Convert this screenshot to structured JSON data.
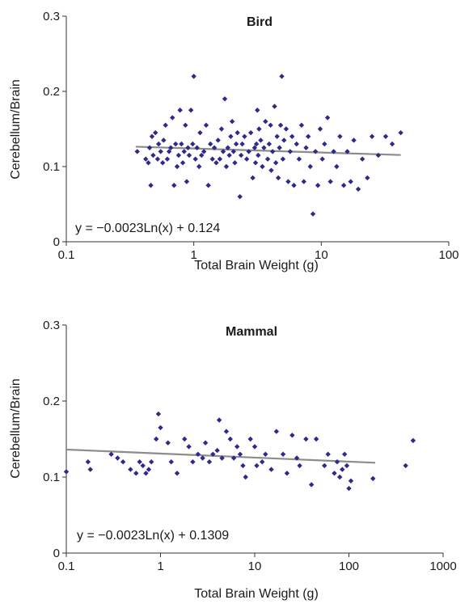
{
  "colors": {
    "points": "#2e2a8c",
    "trendline": "#8c8c8c",
    "axis": "#333333"
  },
  "chart_data": [
    {
      "type": "scatter",
      "title": "Bird",
      "xlabel": "Total Brain Weight (g)",
      "ylabel": "Cerebellum/Brain",
      "xscale": "log",
      "xlim": [
        0.1,
        100
      ],
      "ylim": [
        0,
        0.3
      ],
      "xticks": [
        "0.1",
        "1",
        "10",
        "100"
      ],
      "xtick_values": [
        0.1,
        1,
        10,
        100
      ],
      "yticks": [
        "0",
        "0.1",
        "0.2",
        "0.3"
      ],
      "ytick_values": [
        0,
        0.1,
        0.2,
        0.3
      ],
      "grid": false,
      "equation": "y = −0.0023Ln(x) + 0.124",
      "trendline": {
        "slope": -0.0023,
        "intercept": 0.124,
        "x_range": [
          0.35,
          42
        ]
      },
      "points": [
        [
          0.36,
          0.12
        ],
        [
          0.42,
          0.11
        ],
        [
          0.44,
          0.105
        ],
        [
          0.45,
          0.125
        ],
        [
          0.46,
          0.075
        ],
        [
          0.47,
          0.14
        ],
        [
          0.48,
          0.115
        ],
        [
          0.5,
          0.145
        ],
        [
          0.52,
          0.11
        ],
        [
          0.53,
          0.13
        ],
        [
          0.55,
          0.12
        ],
        [
          0.57,
          0.105
        ],
        [
          0.58,
          0.135
        ],
        [
          0.6,
          0.155
        ],
        [
          0.62,
          0.11
        ],
        [
          0.64,
          0.12
        ],
        [
          0.66,
          0.125
        ],
        [
          0.68,
          0.165
        ],
        [
          0.7,
          0.075
        ],
        [
          0.72,
          0.13
        ],
        [
          0.74,
          0.1
        ],
        [
          0.76,
          0.115
        ],
        [
          0.78,
          0.175
        ],
        [
          0.8,
          0.13
        ],
        [
          0.82,
          0.105
        ],
        [
          0.84,
          0.12
        ],
        [
          0.86,
          0.155
        ],
        [
          0.88,
          0.08
        ],
        [
          0.9,
          0.125
        ],
        [
          0.92,
          0.115
        ],
        [
          0.95,
          0.175
        ],
        [
          0.98,
          0.13
        ],
        [
          1.0,
          0.22
        ],
        [
          1.03,
          0.11
        ],
        [
          1.06,
          0.125
        ],
        [
          1.1,
          0.1
        ],
        [
          1.12,
          0.145
        ],
        [
          1.15,
          0.115
        ],
        [
          1.2,
          0.12
        ],
        [
          1.25,
          0.155
        ],
        [
          1.3,
          0.075
        ],
        [
          1.35,
          0.13
        ],
        [
          1.4,
          0.11
        ],
        [
          1.45,
          0.125
        ],
        [
          1.5,
          0.105
        ],
        [
          1.55,
          0.135
        ],
        [
          1.6,
          0.11
        ],
        [
          1.65,
          0.15
        ],
        [
          1.7,
          0.12
        ],
        [
          1.75,
          0.19
        ],
        [
          1.8,
          0.1
        ],
        [
          1.85,
          0.125
        ],
        [
          1.9,
          0.115
        ],
        [
          1.95,
          0.14
        ],
        [
          2.0,
          0.16
        ],
        [
          2.05,
          0.12
        ],
        [
          2.1,
          0.105
        ],
        [
          2.15,
          0.13
        ],
        [
          2.2,
          0.145
        ],
        [
          2.3,
          0.06
        ],
        [
          2.35,
          0.115
        ],
        [
          2.4,
          0.13
        ],
        [
          2.5,
          0.14
        ],
        [
          2.6,
          0.11
        ],
        [
          2.7,
          0.12
        ],
        [
          2.8,
          0.145
        ],
        [
          2.9,
          0.085
        ],
        [
          3.0,
          0.125
        ],
        [
          3.05,
          0.105
        ],
        [
          3.1,
          0.13
        ],
        [
          3.15,
          0.175
        ],
        [
          3.2,
          0.115
        ],
        [
          3.25,
          0.15
        ],
        [
          3.35,
          0.135
        ],
        [
          3.45,
          0.1
        ],
        [
          3.55,
          0.125
        ],
        [
          3.65,
          0.16
        ],
        [
          3.8,
          0.11
        ],
        [
          3.9,
          0.13
        ],
        [
          4.0,
          0.155
        ],
        [
          4.05,
          0.095
        ],
        [
          4.15,
          0.12
        ],
        [
          4.3,
          0.18
        ],
        [
          4.4,
          0.105
        ],
        [
          4.5,
          0.14
        ],
        [
          4.6,
          0.085
        ],
        [
          4.7,
          0.125
        ],
        [
          4.8,
          0.155
        ],
        [
          4.9,
          0.22
        ],
        [
          5.0,
          0.11
        ],
        [
          5.1,
          0.135
        ],
        [
          5.3,
          0.15
        ],
        [
          5.5,
          0.08
        ],
        [
          5.7,
          0.12
        ],
        [
          5.9,
          0.14
        ],
        [
          6.1,
          0.075
        ],
        [
          6.4,
          0.13
        ],
        [
          6.7,
          0.11
        ],
        [
          7.0,
          0.155
        ],
        [
          7.3,
          0.08
        ],
        [
          7.6,
          0.125
        ],
        [
          7.9,
          0.14
        ],
        [
          8.2,
          0.1
        ],
        [
          8.6,
          0.037
        ],
        [
          9.0,
          0.12
        ],
        [
          9.4,
          0.075
        ],
        [
          9.8,
          0.15
        ],
        [
          10.2,
          0.11
        ],
        [
          10.6,
          0.13
        ],
        [
          11.2,
          0.165
        ],
        [
          11.8,
          0.08
        ],
        [
          12.5,
          0.12
        ],
        [
          13.2,
          0.1
        ],
        [
          14.0,
          0.14
        ],
        [
          15.0,
          0.075
        ],
        [
          16.0,
          0.12
        ],
        [
          17.0,
          0.08
        ],
        [
          18.0,
          0.135
        ],
        [
          19.5,
          0.07
        ],
        [
          21.0,
          0.11
        ],
        [
          23.0,
          0.085
        ],
        [
          25.0,
          0.14
        ],
        [
          28.0,
          0.115
        ],
        [
          32.0,
          0.14
        ],
        [
          36.0,
          0.13
        ],
        [
          42.0,
          0.145
        ]
      ]
    },
    {
      "type": "scatter",
      "title": "Mammal",
      "xlabel": "Total Brain Weight (g)",
      "ylabel": "Cerebellum/Brain",
      "xscale": "log",
      "xlim": [
        0.1,
        1000
      ],
      "ylim": [
        0,
        0.3
      ],
      "xticks": [
        "0.1",
        "1",
        "10",
        "100",
        "1000"
      ],
      "xtick_values": [
        0.1,
        1,
        10,
        100,
        1000
      ],
      "yticks": [
        "0",
        "0.1",
        "0.2",
        "0.3"
      ],
      "ytick_values": [
        0,
        0.1,
        0.2,
        0.3
      ],
      "grid": false,
      "equation": "y = −0.0023Ln(x) + 0.1309",
      "trendline": {
        "slope": -0.0023,
        "intercept": 0.1309,
        "x_range": [
          0.1,
          190
        ]
      },
      "points": [
        [
          0.1,
          0.107
        ],
        [
          0.17,
          0.12
        ],
        [
          0.18,
          0.11
        ],
        [
          0.3,
          0.13
        ],
        [
          0.35,
          0.125
        ],
        [
          0.4,
          0.12
        ],
        [
          0.48,
          0.11
        ],
        [
          0.55,
          0.105
        ],
        [
          0.6,
          0.12
        ],
        [
          0.65,
          0.115
        ],
        [
          0.7,
          0.105
        ],
        [
          0.75,
          0.11
        ],
        [
          0.8,
          0.12
        ],
        [
          0.9,
          0.15
        ],
        [
          0.95,
          0.183
        ],
        [
          1.0,
          0.165
        ],
        [
          1.2,
          0.145
        ],
        [
          1.3,
          0.12
        ],
        [
          1.5,
          0.105
        ],
        [
          1.8,
          0.15
        ],
        [
          2.0,
          0.14
        ],
        [
          2.2,
          0.12
        ],
        [
          2.5,
          0.13
        ],
        [
          2.8,
          0.125
        ],
        [
          3.0,
          0.145
        ],
        [
          3.3,
          0.12
        ],
        [
          3.6,
          0.13
        ],
        [
          4.0,
          0.135
        ],
        [
          4.2,
          0.175
        ],
        [
          4.5,
          0.125
        ],
        [
          5.0,
          0.16
        ],
        [
          5.5,
          0.15
        ],
        [
          6.0,
          0.125
        ],
        [
          6.5,
          0.14
        ],
        [
          7.0,
          0.13
        ],
        [
          7.5,
          0.115
        ],
        [
          8.0,
          0.1
        ],
        [
          9.0,
          0.15
        ],
        [
          10.0,
          0.14
        ],
        [
          10.5,
          0.115
        ],
        [
          12.0,
          0.12
        ],
        [
          13.0,
          0.13
        ],
        [
          15.0,
          0.11
        ],
        [
          17.0,
          0.16
        ],
        [
          20.0,
          0.13
        ],
        [
          22.0,
          0.105
        ],
        [
          25.0,
          0.155
        ],
        [
          28.0,
          0.125
        ],
        [
          30.0,
          0.115
        ],
        [
          35.0,
          0.15
        ],
        [
          40.0,
          0.09
        ],
        [
          45.0,
          0.15
        ],
        [
          55.0,
          0.115
        ],
        [
          60.0,
          0.13
        ],
        [
          70.0,
          0.105
        ],
        [
          75.0,
          0.12
        ],
        [
          80.0,
          0.1
        ],
        [
          85.0,
          0.11
        ],
        [
          90.0,
          0.13
        ],
        [
          95.0,
          0.115
        ],
        [
          100.0,
          0.085
        ],
        [
          105.0,
          0.095
        ],
        [
          180.0,
          0.098
        ],
        [
          400.0,
          0.115
        ],
        [
          480.0,
          0.148
        ]
      ]
    }
  ]
}
